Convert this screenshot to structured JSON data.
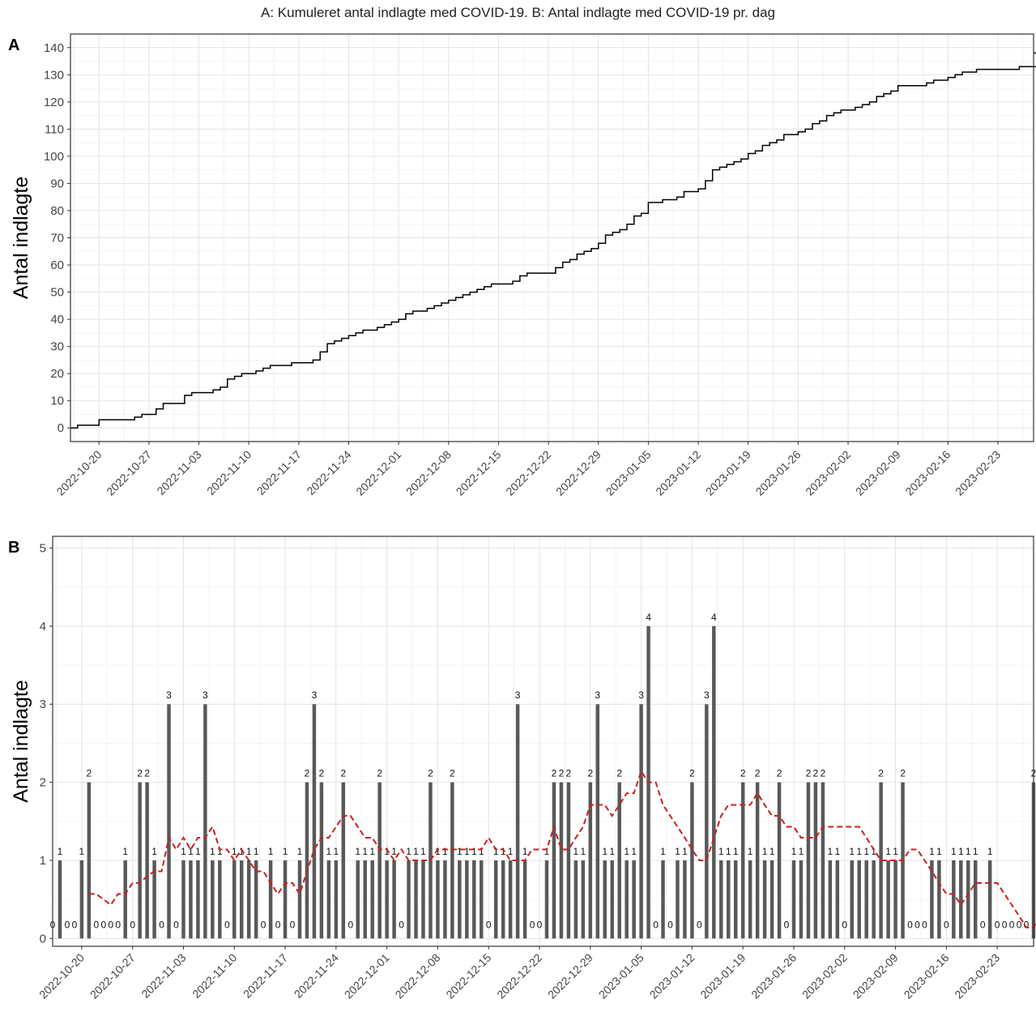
{
  "title": "A: Kumuleret antal indlagte med COVID-19. B: Antal indlagte med COVID-19 pr. dag",
  "chart_data": [
    {
      "panel": "A",
      "type": "line",
      "step": true,
      "title": "",
      "xlabel": "",
      "ylabel": "Antal indlagte",
      "xlim": [
        "2022-10-16",
        "2023-02-28"
      ],
      "ylim": [
        -5,
        145
      ],
      "grid": true,
      "legend": "none",
      "y_ticks": [
        0,
        10,
        20,
        30,
        40,
        50,
        60,
        70,
        80,
        90,
        100,
        110,
        120,
        130,
        140
      ],
      "x_ticks": [
        "2022-10-20",
        "2022-10-27",
        "2022-11-03",
        "2022-11-10",
        "2022-11-17",
        "2022-11-24",
        "2022-12-01",
        "2022-12-08",
        "2022-12-15",
        "2022-12-22",
        "2022-12-29",
        "2023-01-05",
        "2023-01-12",
        "2023-01-19",
        "2023-01-26",
        "2023-02-02",
        "2023-02-09",
        "2023-02-16",
        "2023-02-23"
      ],
      "x_start": "2022-10-16",
      "series": [
        {
          "color": "#000000",
          "values": [
            0,
            1,
            1,
            1,
            3,
            3,
            3,
            3,
            3,
            4,
            5,
            5,
            7,
            9,
            9,
            9,
            12,
            13,
            13,
            13,
            14,
            15,
            18,
            19,
            20,
            20,
            21,
            22,
            23,
            23,
            23,
            24,
            24,
            24,
            25,
            28,
            31,
            32,
            33,
            34,
            35,
            36,
            36,
            37,
            38,
            39,
            40,
            42,
            43,
            43,
            44,
            45,
            46,
            47,
            48,
            49,
            50,
            51,
            52,
            53,
            53,
            53,
            54,
            56,
            57,
            57,
            57,
            57,
            59,
            61,
            62,
            64,
            65,
            66,
            68,
            71,
            72,
            73,
            75,
            78,
            79,
            83,
            83,
            84,
            84,
            85,
            87,
            87,
            88,
            91,
            95,
            96,
            97,
            98,
            99,
            101,
            102,
            104,
            105,
            106,
            108,
            108,
            109,
            110,
            112,
            113,
            115,
            116,
            117,
            117,
            118,
            119,
            120,
            122,
            123,
            124,
            126,
            126,
            126,
            126,
            127,
            128,
            128,
            129,
            130,
            131,
            131,
            132,
            132,
            132,
            132,
            132,
            132,
            133,
            133,
            133,
            134,
            134,
            134,
            135,
            135,
            135,
            135,
            135,
            136,
            136,
            136,
            136,
            136,
            136,
            137,
            138,
            138
          ]
        }
      ]
    },
    {
      "panel": "B",
      "type": "bar",
      "title": "",
      "xlabel": "",
      "ylabel": "Antal indlagte",
      "xlim": [
        "2022-10-16",
        "2023-02-28"
      ],
      "ylim": [
        -0.1,
        5.15
      ],
      "grid": true,
      "legend": "none",
      "y_ticks": [
        0,
        1,
        2,
        3,
        4,
        5
      ],
      "x_ticks": [
        "2022-10-20",
        "2022-10-27",
        "2022-11-03",
        "2022-11-10",
        "2022-11-17",
        "2022-11-24",
        "2022-12-01",
        "2022-12-08",
        "2022-12-15",
        "2022-12-22",
        "2022-12-29",
        "2023-01-05",
        "2023-01-12",
        "2023-01-19",
        "2023-01-26",
        "2023-02-02",
        "2023-02-09",
        "2023-02-16",
        "2023-02-23"
      ],
      "bar_color": "#595959",
      "x_start": "2022-10-16",
      "series": [
        {
          "values": [
            0,
            1,
            0,
            0,
            1,
            2,
            0,
            0,
            0,
            0,
            1,
            0,
            2,
            2,
            1,
            0,
            3,
            0,
            1,
            1,
            1,
            3,
            1,
            1,
            0,
            1,
            1,
            1,
            1,
            0,
            1,
            0,
            1,
            0,
            1,
            2,
            3,
            2,
            1,
            1,
            2,
            0,
            1,
            1,
            1,
            2,
            1,
            1,
            0,
            1,
            1,
            1,
            2,
            1,
            1,
            2,
            1,
            1,
            1,
            1,
            0,
            1,
            1,
            1,
            3,
            1,
            0,
            0,
            1,
            2,
            2,
            2,
            1,
            1,
            2,
            3,
            1,
            1,
            2,
            1,
            1,
            3,
            4,
            0,
            1,
            0,
            1,
            1,
            2,
            0,
            3,
            4,
            1,
            1,
            1,
            2,
            1,
            2,
            1,
            1,
            2,
            0,
            1,
            1,
            2,
            2,
            2,
            1,
            1,
            0,
            1,
            1,
            1,
            1,
            2,
            1,
            1,
            2,
            0,
            0,
            0,
            1,
            1,
            0,
            1,
            1,
            1,
            1,
            0,
            1,
            0,
            0,
            0,
            0,
            0,
            2,
            0,
            0,
            0,
            1,
            0,
            0,
            0,
            0,
            0,
            1,
            0,
            0,
            0,
            0,
            0,
            1,
            2,
            0
          ]
        },
        {
          "type": "line",
          "style": "dashed",
          "color": "#cc1f1f",
          "x_offset": 5,
          "values": [
            0.57,
            0.57,
            0.5,
            0.43,
            0.57,
            0.57,
            0.71,
            0.71,
            0.8,
            0.86,
            0.86,
            1.29,
            1.14,
            1.29,
            1.14,
            1.29,
            1.29,
            1.43,
            1.14,
            1.14,
            1.0,
            1.14,
            1.0,
            0.86,
            0.86,
            0.71,
            0.57,
            0.71,
            0.71,
            0.57,
            0.86,
            1.14,
            1.29,
            1.29,
            1.43,
            1.57,
            1.57,
            1.43,
            1.29,
            1.29,
            1.14,
            1.14,
            1.0,
            1.14,
            1.0,
            1.0,
            1.0,
            1.0,
            1.14,
            1.14,
            1.14,
            1.14,
            1.14,
            1.14,
            1.14,
            1.29,
            1.14,
            1.14,
            1.0,
            1.0,
            1.0,
            1.14,
            1.14,
            1.14,
            1.43,
            1.14,
            1.14,
            1.29,
            1.43,
            1.71,
            1.71,
            1.71,
            1.57,
            1.71,
            1.86,
            1.86,
            2.14,
            2.0,
            2.0,
            1.71,
            1.57,
            1.43,
            1.29,
            1.14,
            1.0,
            1.0,
            1.29,
            1.57,
            1.71,
            1.71,
            1.71,
            1.71,
            1.86,
            1.71,
            1.57,
            1.57,
            1.43,
            1.43,
            1.29,
            1.29,
            1.29,
            1.43,
            1.43,
            1.43,
            1.43,
            1.43,
            1.43,
            1.29,
            1.14,
            1.0,
            1.0,
            1.0,
            1.0,
            1.14,
            1.14,
            1.0,
            0.86,
            0.71,
            0.57,
            0.57,
            0.43,
            0.57,
            0.71,
            0.71,
            0.71,
            0.71,
            0.57,
            0.43,
            0.29,
            0.14,
            0.14,
            0.29,
            0.43,
            0.29,
            0.29,
            0.29,
            0.43,
            0.43,
            0.43,
            0.43,
            0.43,
            0.29,
            0.29,
            0.14,
            0.14,
            0.14,
            0.14,
            0.29,
            0.43,
            0.29,
            0.29
          ]
        }
      ]
    }
  ]
}
